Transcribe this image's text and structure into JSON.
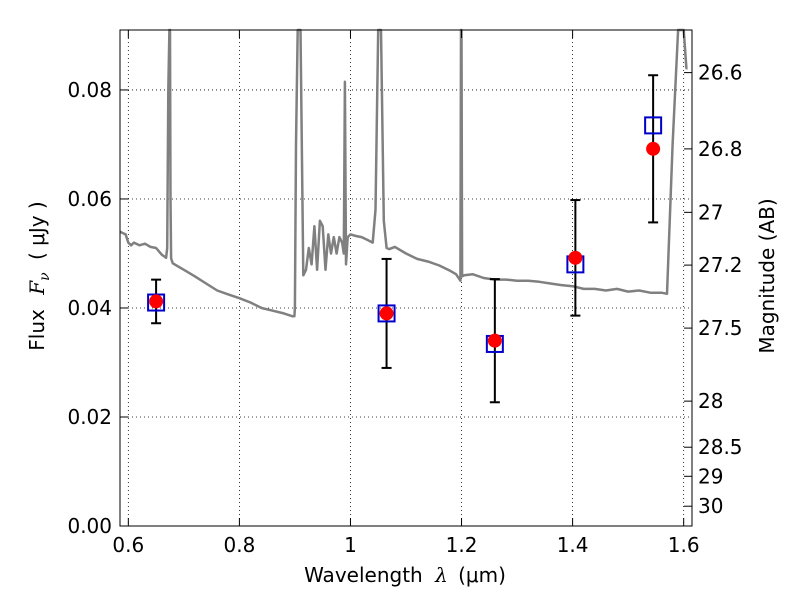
{
  "chart_data": {
    "type": "scatter",
    "xlabel_prefix": "Wavelength",
    "xlabel_unit": "(μm)",
    "ylabel_prefix": "Flux",
    "ylabel_unit": "( μJy )",
    "y2label": "Magnitude (AB)",
    "xlim": [
      0.585,
      1.615
    ],
    "ylim": [
      0.0,
      0.091
    ],
    "grid": true,
    "x_ticks": [
      0.6,
      0.8,
      1.0,
      1.2,
      1.4,
      1.6
    ],
    "x_tick_labels": [
      "0.6",
      "0.8",
      "1",
      "1.2",
      "1.4",
      "1.6"
    ],
    "y_ticks": [
      0.0,
      0.02,
      0.04,
      0.06,
      0.08
    ],
    "y_tick_labels": [
      "0.00",
      "0.02",
      "0.04",
      "0.06",
      "0.08"
    ],
    "y2_ticks": [
      26.6,
      26.8,
      27.0,
      27.2,
      27.5,
      28.0,
      28.5,
      29.0,
      30.0
    ],
    "y2_tick_labels": [
      "26.6",
      "26.8",
      "27",
      "27.2",
      "27.5",
      "28",
      "28.5",
      "29",
      "30"
    ],
    "observed": {
      "color": "#ff0000",
      "x": [
        0.65,
        1.065,
        1.26,
        1.405,
        1.545
      ],
      "y": [
        0.0412,
        0.039,
        0.034,
        0.0492,
        0.0692
      ],
      "err": [
        0.004,
        0.01,
        0.0113,
        0.0106,
        0.0135
      ]
    },
    "model_points": {
      "color": "#0000cc",
      "x": [
        0.65,
        1.065,
        1.26,
        1.405,
        1.545
      ],
      "y": [
        0.041,
        0.039,
        0.0334,
        0.048,
        0.0735
      ]
    },
    "model_spectrum": {
      "color": "#808080",
      "x": [
        0.585,
        0.595,
        0.6,
        0.605,
        0.61,
        0.62,
        0.63,
        0.64,
        0.65,
        0.66,
        0.668,
        0.67,
        0.672,
        0.674,
        0.675,
        0.676,
        0.677,
        0.678,
        0.68,
        0.69,
        0.7,
        0.72,
        0.74,
        0.76,
        0.78,
        0.8,
        0.82,
        0.84,
        0.86,
        0.88,
        0.895,
        0.899,
        0.9,
        0.902,
        0.905,
        0.91,
        0.915,
        0.92,
        0.925,
        0.93,
        0.935,
        0.94,
        0.945,
        0.95,
        0.955,
        0.96,
        0.965,
        0.97,
        0.975,
        0.98,
        0.985,
        0.988,
        0.99,
        0.992,
        0.995,
        1.0,
        1.01,
        1.02,
        1.03,
        1.04,
        1.045,
        1.05,
        1.055,
        1.06,
        1.065,
        1.07,
        1.08,
        1.1,
        1.12,
        1.14,
        1.16,
        1.18,
        1.19,
        1.198,
        1.199,
        1.2,
        1.201,
        1.205,
        1.22,
        1.24,
        1.26,
        1.28,
        1.3,
        1.32,
        1.34,
        1.36,
        1.38,
        1.4,
        1.42,
        1.44,
        1.46,
        1.48,
        1.5,
        1.52,
        1.54,
        1.555,
        1.56,
        1.57,
        1.58,
        1.59,
        1.6,
        1.605,
        1.607
      ],
      "y": [
        0.054,
        0.0535,
        0.052,
        0.0515,
        0.052,
        0.0515,
        0.0518,
        0.0512,
        0.051,
        0.0498,
        0.0492,
        0.051,
        0.08,
        0.091,
        0.091,
        0.06,
        0.0492,
        0.0488,
        0.0482,
        0.0476,
        0.047,
        0.0458,
        0.0445,
        0.0432,
        0.0425,
        0.0418,
        0.041,
        0.04,
        0.0395,
        0.039,
        0.0385,
        0.0385,
        0.04,
        0.07,
        0.091,
        0.091,
        0.046,
        0.047,
        0.051,
        0.048,
        0.055,
        0.047,
        0.056,
        0.055,
        0.047,
        0.0535,
        0.05,
        0.053,
        0.05,
        0.053,
        0.052,
        0.05,
        0.0815,
        0.048,
        0.053,
        0.0535,
        0.0532,
        0.053,
        0.0525,
        0.052,
        0.058,
        0.091,
        0.091,
        0.056,
        0.051,
        0.0508,
        0.0512,
        0.05,
        0.049,
        0.0485,
        0.0478,
        0.0468,
        0.0462,
        0.045,
        0.091,
        0.091,
        0.0458,
        0.046,
        0.0462,
        0.0455,
        0.0452,
        0.0452,
        0.045,
        0.045,
        0.0448,
        0.0445,
        0.0442,
        0.044,
        0.0435,
        0.0435,
        0.0432,
        0.0435,
        0.043,
        0.0432,
        0.0428,
        0.0428,
        0.0428,
        0.0426,
        0.07,
        0.091,
        0.091,
        0.084,
        0.084
      ]
    }
  }
}
